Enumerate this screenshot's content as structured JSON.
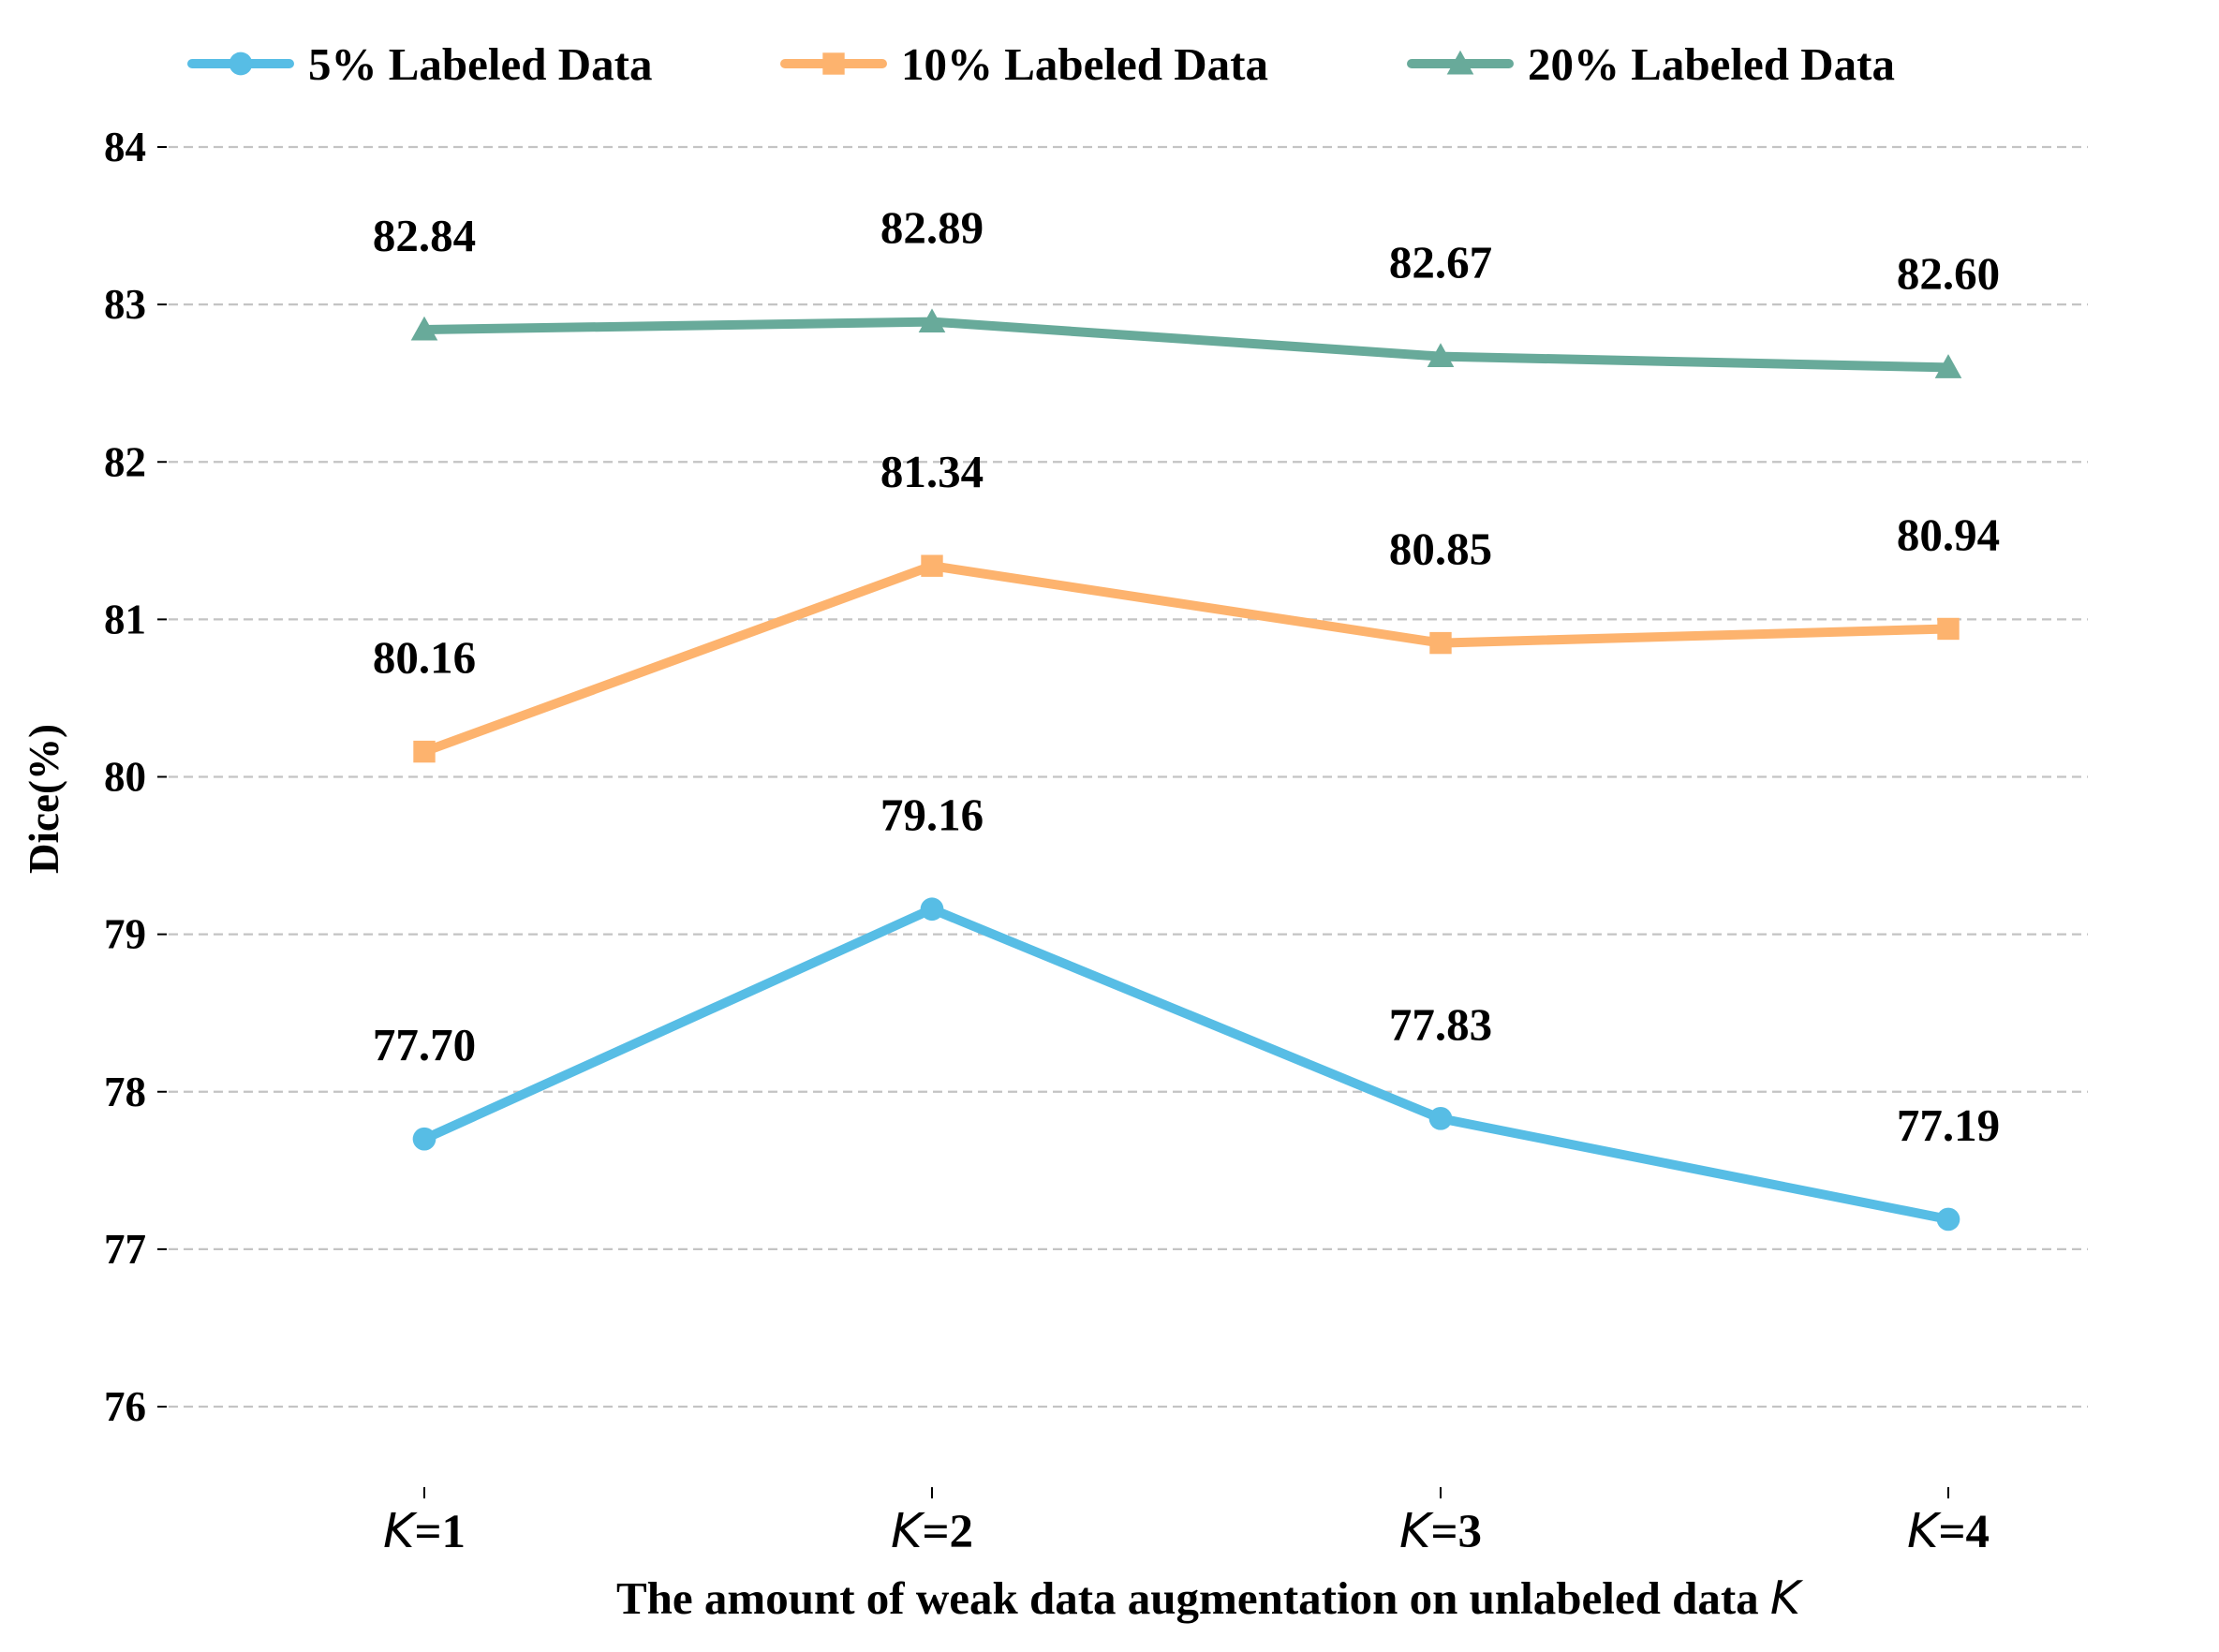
{
  "chart_data": {
    "type": "line",
    "title": "",
    "categories": [
      "K=1",
      "K=2",
      "K=3",
      "K=4"
    ],
    "category_parts": [
      {
        "var": "K",
        "rest": "=1"
      },
      {
        "var": "K",
        "rest": "=2"
      },
      {
        "var": "K",
        "rest": "=3"
      },
      {
        "var": "K",
        "rest": "=4"
      }
    ],
    "xlabel": "The amount of weak data augmentation on unlabeled data K",
    "xlabel_parts": {
      "text": "The amount of weak data augmentation on unlabeled data ",
      "var": "K"
    },
    "ylabel": "Dice(%)",
    "ylim": [
      75.6,
      84.4
    ],
    "yticks": [
      76,
      77,
      78,
      79,
      80,
      81,
      82,
      83,
      84
    ],
    "grid": "y-dashed",
    "legend_position": "top",
    "series": [
      {
        "name": "5% Labeled Data",
        "marker": "circle",
        "color": "#57bde5",
        "values": [
          77.7,
          79.16,
          77.83,
          77.19
        ],
        "labels": [
          "77.70",
          "79.16",
          "77.83",
          "77.19"
        ]
      },
      {
        "name": "10% Labeled Data",
        "marker": "square",
        "color": "#fdb36e",
        "values": [
          80.16,
          81.34,
          80.85,
          80.94
        ],
        "labels": [
          "80.16",
          "81.34",
          "80.85",
          "80.94"
        ]
      },
      {
        "name": "20% Labeled Data",
        "marker": "triangle",
        "color": "#68aa9a",
        "values": [
          82.84,
          82.89,
          82.67,
          82.6
        ],
        "labels": [
          "82.84",
          "82.89",
          "82.67",
          "82.60"
        ]
      }
    ]
  }
}
